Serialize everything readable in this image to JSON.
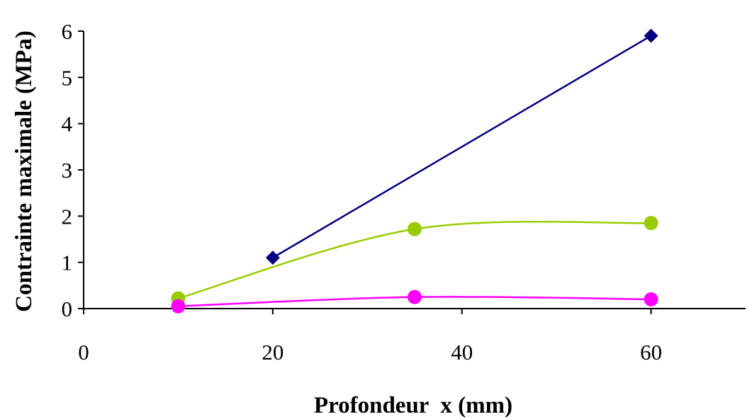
{
  "chart_data": {
    "type": "line",
    "xlabel": "Profondeur  x (mm)",
    "ylabel": "Contrainte maximale (MPa)",
    "xlim": [
      0,
      70
    ],
    "ylim": [
      0,
      6
    ],
    "xticks": [
      0,
      20,
      40,
      60
    ],
    "yticks": [
      0,
      1,
      2,
      3,
      4,
      5,
      6
    ],
    "grid": false,
    "legend": "none",
    "series": [
      {
        "color": "#000080",
        "marker": "diamond",
        "smooth": false,
        "x": [
          20,
          60
        ],
        "y": [
          1.1,
          5.9
        ]
      },
      {
        "color": "#99CC00",
        "marker": "circle",
        "smooth": true,
        "x": [
          10,
          35,
          60
        ],
        "y": [
          0.22,
          1.72,
          1.85
        ]
      },
      {
        "color": "#FF00FF",
        "marker": "circle",
        "smooth": true,
        "x": [
          10,
          35,
          60
        ],
        "y": [
          0.05,
          0.25,
          0.2
        ]
      }
    ]
  }
}
